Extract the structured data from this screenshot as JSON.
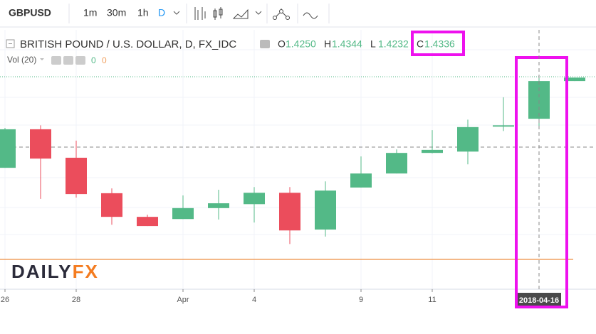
{
  "toolbar": {
    "symbol": "GBPUSD",
    "intervals": [
      "1m",
      "30m",
      "1h",
      "D"
    ]
  },
  "legend": {
    "title": "BRITISH POUND / U.S. DOLLAR, D, FX_IDC",
    "fields": [
      {
        "key": "O",
        "value": "1.4250"
      },
      {
        "key": "H",
        "value": "1.4344"
      },
      {
        "key": "L",
        "value": "1.4232"
      },
      {
        "key": "C",
        "value": "1.4336"
      }
    ]
  },
  "volume": {
    "label": "Vol (20)",
    "values": [
      "0",
      "0"
    ]
  },
  "logo": {
    "part1": "DAILY",
    "part2": "FX"
  },
  "chart_data": {
    "type": "candlestick",
    "categories": [
      "26",
      null,
      "28",
      null,
      null,
      "Apr",
      null,
      "4",
      null,
      null,
      "9",
      null,
      "11",
      null,
      null,
      "2018-04-16",
      null
    ],
    "open": [
      1.4138,
      1.4226,
      1.4161,
      1.408,
      1.4026,
      1.4021,
      1.4046,
      1.4055,
      1.4081,
      1.3997,
      1.4093,
      1.4125,
      1.4172,
      1.4175,
      1.4232,
      1.425,
      1.4336
    ],
    "high": [
      1.4229,
      1.4235,
      1.42,
      1.4091,
      1.4031,
      1.4075,
      1.4088,
      1.4094,
      1.4094,
      1.4107,
      1.4164,
      1.418,
      1.4224,
      1.4248,
      1.4299,
      1.4344,
      1.4344
    ],
    "low": [
      1.4138,
      1.4067,
      1.407,
      1.4008,
      1.4005,
      1.4021,
      1.402,
      1.4013,
      1.3964,
      1.3981,
      1.4093,
      1.4125,
      1.4171,
      1.4146,
      1.4222,
      1.4232,
      1.4336
    ],
    "close": [
      1.4226,
      1.4159,
      1.4078,
      1.4026,
      1.4005,
      1.4046,
      1.4057,
      1.4081,
      1.3995,
      1.4086,
      1.4125,
      1.4172,
      1.4179,
      1.4231,
      1.4235,
      1.4336,
      1.4344
    ],
    "ylim": [
      1.3864,
      1.4453
    ],
    "up_color": "#53b987",
    "down_color": "#eb4d5c"
  }
}
